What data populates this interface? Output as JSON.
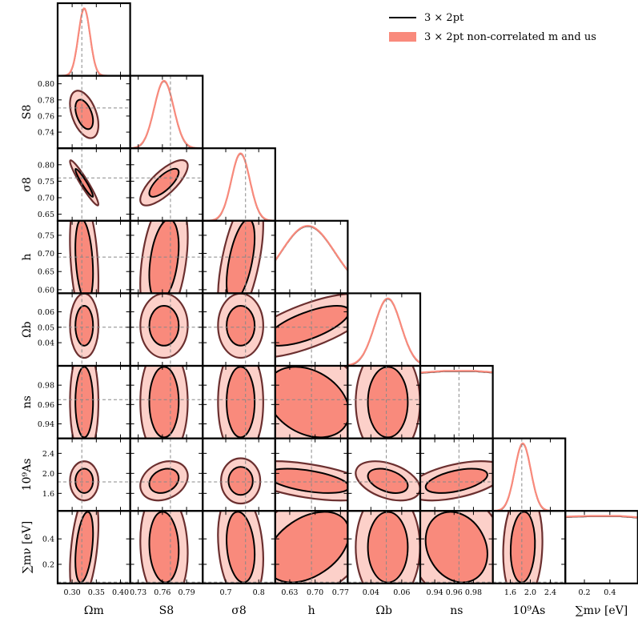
{
  "chart_data": {
    "type": "corner",
    "parameters": [
      {
        "key": "Om",
        "label": "Ωm",
        "range": [
          0.27,
          0.42
        ],
        "ticks": [
          0.3,
          0.35,
          0.4
        ],
        "tick_labels": [
          "0.30",
          "0.35",
          "0.40"
        ],
        "fiducial": 0.32
      },
      {
        "key": "S8",
        "label": "S8",
        "range": [
          0.72,
          0.81
        ],
        "ticks": [
          0.73,
          0.76,
          0.79
        ],
        "tick_labels": [
          "0.73",
          "0.76",
          "0.79"
        ],
        "y_ticks": [
          0.74,
          0.76,
          0.78,
          0.8
        ],
        "y_tick_labels": [
          "0.74",
          "0.76",
          "0.78",
          "0.80"
        ],
        "fiducial": 0.77
      },
      {
        "key": "s8",
        "label": "σ8",
        "range": [
          0.63,
          0.85
        ],
        "ticks": [
          0.7,
          0.8
        ],
        "tick_labels": [
          "0.7",
          "0.8"
        ],
        "y_ticks": [
          0.65,
          0.7,
          0.75,
          0.8
        ],
        "y_tick_labels": [
          "0.65",
          "0.70",
          "0.75",
          "0.80"
        ],
        "fiducial": 0.76
      },
      {
        "key": "h",
        "label": "h",
        "range": [
          0.59,
          0.79
        ],
        "ticks": [
          0.63,
          0.7,
          0.77
        ],
        "tick_labels": [
          "0.63",
          "0.70",
          "0.77"
        ],
        "y_ticks": [
          0.6,
          0.65,
          0.7,
          0.75
        ],
        "y_tick_labels": [
          "0.60",
          "0.65",
          "0.70",
          "0.75"
        ],
        "fiducial": 0.69
      },
      {
        "key": "Ob",
        "label": "Ωb",
        "range": [
          0.025,
          0.072
        ],
        "ticks": [
          0.04,
          0.06
        ],
        "tick_labels": [
          "0.04",
          "0.06"
        ],
        "y_ticks": [
          0.04,
          0.05,
          0.06
        ],
        "y_tick_labels": [
          "0.04",
          "0.05",
          "0.06"
        ],
        "fiducial": 0.05
      },
      {
        "key": "ns",
        "label": "ns",
        "range": [
          0.925,
          1.0
        ],
        "ticks": [
          0.94,
          0.96,
          0.98
        ],
        "tick_labels": [
          "0.94",
          "0.96",
          "0.98"
        ],
        "y_ticks": [
          0.94,
          0.96,
          0.98
        ],
        "y_tick_labels": [
          "0.94",
          "0.96",
          "0.98"
        ],
        "fiducial": 0.965
      },
      {
        "key": "As",
        "label": "10⁹As",
        "range": [
          1.25,
          2.7
        ],
        "ticks": [
          1.6,
          2.0,
          2.4
        ],
        "tick_labels": [
          "1.6",
          "2.0",
          "2.4"
        ],
        "y_ticks": [
          1.6,
          2.0,
          2.4
        ],
        "y_tick_labels": [
          "1.6",
          "2.0",
          "2.4"
        ],
        "fiducial": 1.83
      },
      {
        "key": "mnu",
        "label": "∑mν [eV]",
        "range": [
          0.05,
          0.62
        ],
        "ticks": [
          0.2,
          0.4
        ],
        "tick_labels": [
          "0.2",
          "0.4"
        ],
        "y_ticks": [
          0.2,
          0.4
        ],
        "y_tick_labels": [
          "0.2",
          "0.4"
        ],
        "fiducial": 0.06
      }
    ],
    "series": [
      {
        "name": "3 × 2pt",
        "color": "#000000",
        "style": "line"
      },
      {
        "name": "3 × 2pt non-correlated m and us",
        "color": "#f98a7c",
        "style": "fill"
      }
    ],
    "marginals": {
      "Om": {
        "type": "gauss",
        "mean": 0.325,
        "sd": 0.012
      },
      "S8": {
        "type": "gauss",
        "mean": 0.762,
        "sd": 0.012
      },
      "s8": {
        "type": "gauss",
        "mean": 0.745,
        "sd": 0.028
      },
      "h": {
        "type": "gauss",
        "mean": 0.68,
        "sd": 0.075
      },
      "Ob": {
        "type": "gauss",
        "mean": 0.051,
        "sd": 0.0085
      },
      "ns": {
        "type": "flat",
        "start": 0.975,
        "end": 1.0
      },
      "As": {
        "type": "gauss",
        "mean": 1.85,
        "sd": 0.16
      },
      "mnu": {
        "type": "flat",
        "start": 0.99,
        "end": 1.0
      }
    },
    "correlations": {
      "S8|Om": -0.45,
      "s8|Om": -0.95,
      "s8|S8": 0.75,
      "h|Om": -0.3,
      "h|S8": 0.35,
      "h|s8": 0.55,
      "Ob|Om": 0.0,
      "Ob|S8": 0.0,
      "Ob|s8": 0.0,
      "Ob|h": 0.7,
      "ns|Om": 0.0,
      "ns|S8": 0.0,
      "ns|s8": 0.0,
      "ns|h": -0.3,
      "ns|Ob": 0.0,
      "As|Om": 0.0,
      "As|S8": 0.25,
      "As|s8": 0.0,
      "As|h": -0.5,
      "As|Ob": -0.4,
      "As|ns": 0.5,
      "mnu|Om": 0.4,
      "mnu|S8": -0.1,
      "mnu|s8": -0.2,
      "mnu|h": 0.4,
      "mnu|Ob": 0.0,
      "mnu|ns": -0.2,
      "mnu|As": 0.1
    },
    "legend_position": "top-right",
    "reference_lines": "dashed grey at fiducial values",
    "grid": false
  },
  "legend": {
    "line_label": "3 × 2pt",
    "fill_label": "3 × 2pt non-correlated m and us"
  }
}
